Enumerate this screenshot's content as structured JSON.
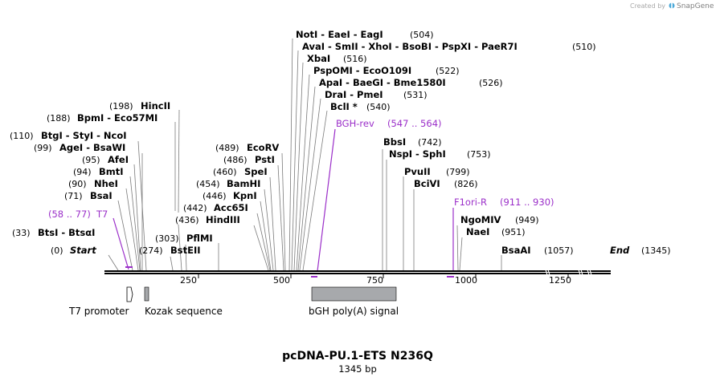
{
  "title": "pcDNA-PU.1-ETS N236Q",
  "subtitle": "1345 bp",
  "credit": {
    "text": "Created by",
    "brand": "SnapGene"
  },
  "ruler": {
    "ticks": [
      "250",
      "500",
      "750",
      "1000",
      "1250"
    ]
  },
  "sites": [
    {
      "label": "NotI  -  EaeI  -  EagI",
      "pos": "(504)"
    },
    {
      "label": "AvaI  -  SmII  -  XhoI  -  BsoBI  -  PspXI  -  PaeR7I",
      "pos": "(510)"
    },
    {
      "label": "XbaI",
      "pos": "(516)"
    },
    {
      "label": "PspOMI  -  EcoO109I",
      "pos": "(522)"
    },
    {
      "label": "ApaI  -  BaeGI  -  Bme1580I",
      "pos": "(526)"
    },
    {
      "label": "DraI  -  PmeI",
      "pos": "(531)"
    },
    {
      "label": "BclI *",
      "pos": "(540)"
    },
    {
      "label": "HincII",
      "pos": "(198)"
    },
    {
      "label": "BpmI  -  Eco57MI",
      "pos": "(188)"
    },
    {
      "label": "BtgI  -  StyI  -  NcoI",
      "pos": "(110)"
    },
    {
      "label": "AgeI  -  BsaWI",
      "pos": "(99)"
    },
    {
      "label": "AfeI",
      "pos": "(95)"
    },
    {
      "label": "BmtI",
      "pos": "(94)"
    },
    {
      "label": "NheI",
      "pos": "(90)"
    },
    {
      "label": "BsaI",
      "pos": "(71)"
    },
    {
      "label": "BtsI  -  BtsαI",
      "pos": "(33)"
    },
    {
      "label": "Start",
      "pos": "(0)"
    },
    {
      "label": "BstEII",
      "pos": "(274)"
    },
    {
      "label": "PflMI",
      "pos": "(303)"
    },
    {
      "label": "HindIII",
      "pos": "(436)"
    },
    {
      "label": "Acc65I",
      "pos": "(442)"
    },
    {
      "label": "KpnI",
      "pos": "(446)"
    },
    {
      "label": "BamHI",
      "pos": "(454)"
    },
    {
      "label": "SpeI",
      "pos": "(460)"
    },
    {
      "label": "PstI",
      "pos": "(486)"
    },
    {
      "label": "EcoRV",
      "pos": "(489)"
    },
    {
      "label": "BbsI",
      "pos": "(742)"
    },
    {
      "label": "NspI  -  SphI",
      "pos": "(753)"
    },
    {
      "label": "PvuII",
      "pos": "(799)"
    },
    {
      "label": "BciVI",
      "pos": "(826)"
    },
    {
      "label": "NgoMIV",
      "pos": "(949)"
    },
    {
      "label": "NaeI",
      "pos": "(951)"
    },
    {
      "label": "BsaAI",
      "pos": "(1057)"
    },
    {
      "label": "End",
      "pos": "(1345)"
    }
  ],
  "primers": [
    {
      "label": "BGH-rev",
      "range": "(547 .. 564)"
    },
    {
      "label": "T7",
      "range": "(58 .. 77)"
    },
    {
      "label": "F1ori-R",
      "range": "(911 .. 930)"
    }
  ],
  "features": [
    {
      "label": "T7 promoter"
    },
    {
      "label": "Kozak sequence"
    },
    {
      "label": "bGH poly(A) signal"
    }
  ],
  "colors": {
    "primer": "#9b2fc9",
    "feature_fill": "#a7a9ac",
    "credit": "#a8a8a8"
  }
}
